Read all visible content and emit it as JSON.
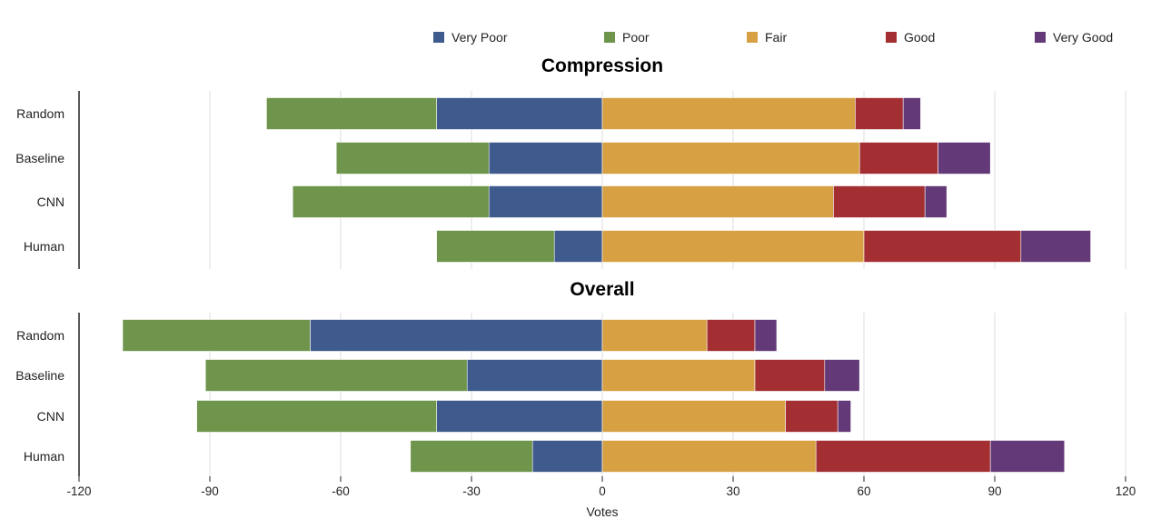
{
  "chart_data": {
    "type": "bar",
    "orientation": "horizontal",
    "stacked": "diverging",
    "xlabel": "Votes",
    "xlim": [
      -120,
      120
    ],
    "xticks": [
      -120,
      -90,
      -60,
      -30,
      0,
      30,
      60,
      90,
      120
    ],
    "grid": true,
    "legend_position": "top",
    "legend": [
      {
        "name": "Very Poor",
        "color": "#3f5a8c"
      },
      {
        "name": "Poor",
        "color": "#6e954b"
      },
      {
        "name": "Fair",
        "color": "#d6a043"
      },
      {
        "name": "Good",
        "color": "#a32f33"
      },
      {
        "name": "Very Good",
        "color": "#633a77"
      }
    ],
    "panels": [
      {
        "title": "Compression",
        "categories": [
          "Random",
          "Baseline",
          "CNN",
          "Human"
        ],
        "series": [
          {
            "name": "Very Poor",
            "values": [
              -38,
              -26,
              -26,
              -11
            ]
          },
          {
            "name": "Poor",
            "values": [
              -39,
              -35,
              -45,
              -27
            ]
          },
          {
            "name": "Fair",
            "values": [
              58,
              59,
              53,
              60
            ]
          },
          {
            "name": "Good",
            "values": [
              11,
              18,
              21,
              36
            ]
          },
          {
            "name": "Very Good",
            "values": [
              4,
              12,
              5,
              16
            ]
          }
        ]
      },
      {
        "title": "Overall",
        "categories": [
          "Random",
          "Baseline",
          "CNN",
          "Human"
        ],
        "series": [
          {
            "name": "Very Poor",
            "values": [
              -67,
              -31,
              -38,
              -16
            ]
          },
          {
            "name": "Poor",
            "values": [
              -43,
              -60,
              -55,
              -28
            ]
          },
          {
            "name": "Fair",
            "values": [
              24,
              35,
              42,
              49
            ]
          },
          {
            "name": "Good",
            "values": [
              11,
              16,
              12,
              40
            ]
          },
          {
            "name": "Very Good",
            "values": [
              5,
              8,
              3,
              17
            ]
          }
        ]
      }
    ]
  }
}
